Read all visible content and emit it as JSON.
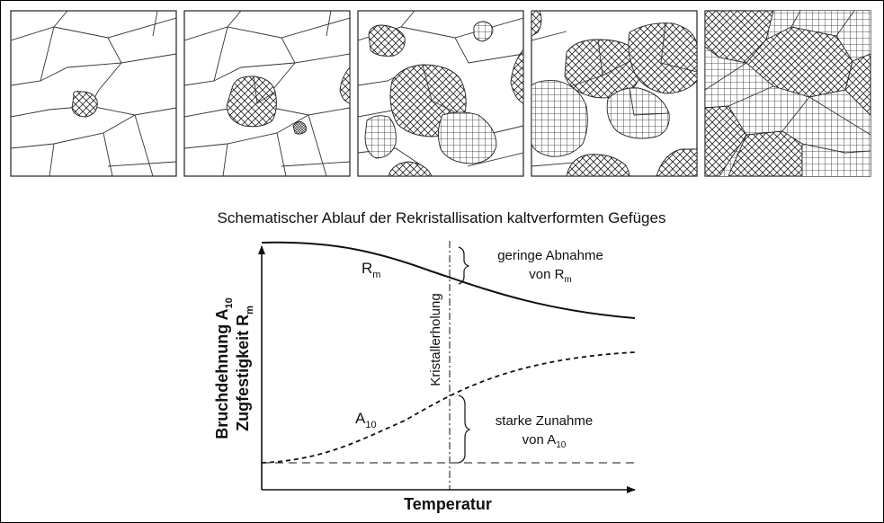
{
  "caption": "Schematischer Ablauf der Rekristallisation kaltverformten Gefüges",
  "axes": {
    "y_label_line1_base": "Bruchdehnung A",
    "y_label_line1_sub": "10",
    "y_label_line2_base": "Zugfestigkeit R",
    "y_label_line2_sub": "m",
    "x_label": "Temperatur",
    "vertical_marker_label": "Kristallerholung"
  },
  "curves": {
    "rm_label_base": "R",
    "rm_label_sub": "m",
    "a10_label_base": "A",
    "a10_label_sub": "10"
  },
  "annotations": {
    "top_line1": "geringe Abnahme",
    "top_line2_base": "von R",
    "top_line2_sub": "m",
    "bottom_line1": "starke Zunahme",
    "bottom_line2_base": "von A",
    "bottom_line2_sub": "10"
  },
  "panels_count": 5,
  "colors": {
    "line": "#111111",
    "background": "#ffffff"
  }
}
